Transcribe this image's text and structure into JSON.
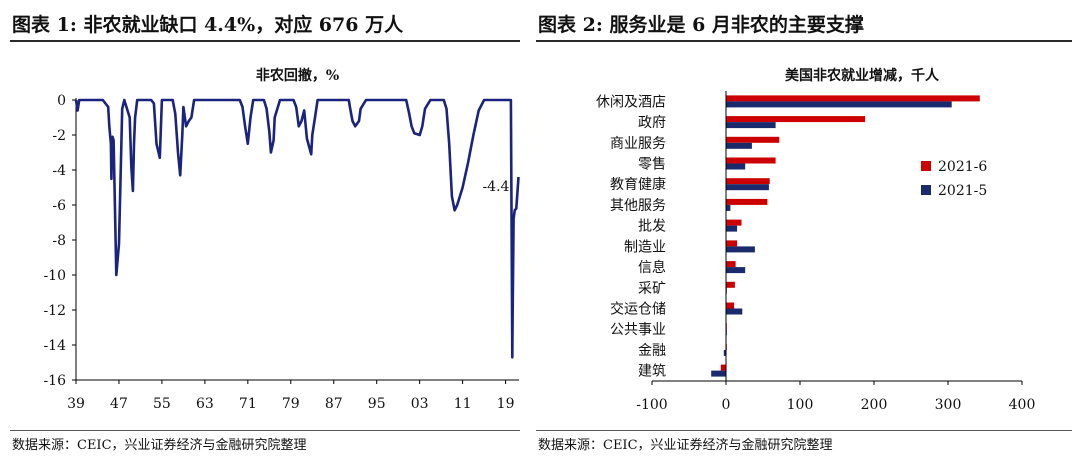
{
  "left_panel": {
    "heading": "图表 1:  非农就业缺口 4.4%，对应 676 万人",
    "source": "数据来源：CEIC，兴业证券经济与金融研究院整理"
  },
  "right_panel": {
    "heading": "图表 2:  服务业是 6 月非农的主要支撑",
    "source": "数据来源：CEIC，兴业证券经济与金融研究院整理"
  },
  "chart_data": [
    {
      "type": "line",
      "title": "非农回撤，%",
      "xlabel": "",
      "ylabel": "",
      "xlim": [
        1939,
        2021.5
      ],
      "ylim": [
        -16,
        0
      ],
      "x_ticks": [
        "39",
        "47",
        "55",
        "63",
        "71",
        "79",
        "87",
        "95",
        "03",
        "11",
        "19"
      ],
      "y_ticks": [
        "0",
        "-2",
        "-4",
        "-6",
        "-8",
        "-10",
        "-12",
        "-14",
        "-16"
      ],
      "annotation": "-4.4",
      "series": [
        {
          "color": "#1a237e",
          "x": [
            1939,
            1939.3,
            1939.6,
            1940,
            1941,
            1942,
            1943,
            1944,
            1945,
            1945.2,
            1945.5,
            1945.6,
            1945.7,
            1945.8,
            1946,
            1946.5,
            1947,
            1947.6,
            1948,
            1949,
            1949.3,
            1949.6,
            1949.8,
            1950,
            1950.4,
            1951,
            1952,
            1953,
            1953.5,
            1954,
            1954.6,
            1955,
            1956,
            1957,
            1957.5,
            1958,
            1958.4,
            1958.8,
            1959,
            1959.5,
            1960,
            1960.5,
            1961,
            1961.3,
            1962,
            1963,
            1969.5,
            1970,
            1970.5,
            1971,
            1971.5,
            1972,
            1973,
            1974,
            1974.5,
            1975,
            1975.3,
            1975.8,
            1976,
            1977,
            1979.5,
            1980,
            1980.5,
            1981,
            1981.5,
            1982,
            1982.8,
            1983,
            1983.5,
            1984,
            1985,
            1986,
            1989.8,
            1990,
            1990.5,
            1991,
            1991.7,
            1992,
            1993,
            1994,
            1999,
            2000.5,
            2001,
            2001.5,
            2002,
            2003,
            2003.5,
            2004,
            2005,
            2006,
            2007.5,
            2008,
            2008.5,
            2009,
            2009.5,
            2010,
            2010.5,
            2011,
            2012,
            2013,
            2014,
            2015,
            2016,
            2017,
            2018,
            2019,
            2020,
            2020.25,
            2020.3,
            2020.5,
            2020.7,
            2021,
            2021.2,
            2021.4
          ],
          "y": [
            0,
            -0.6,
            0,
            0,
            0,
            0,
            0,
            0,
            -0.4,
            -1.5,
            -2.5,
            -4.5,
            -2.2,
            -2.1,
            -2.3,
            -10,
            -8.2,
            -0.5,
            0,
            -1,
            -3.8,
            -5.2,
            -2.5,
            -1,
            0,
            0,
            0,
            0,
            -0.2,
            -2.5,
            -3.3,
            0,
            0,
            0,
            -0.8,
            -3,
            -4.3,
            -2,
            -0.4,
            -1.5,
            -1.2,
            -1,
            0,
            0,
            0,
            0,
            0,
            -0.4,
            -1.5,
            -2.5,
            -1,
            0,
            0,
            0,
            -0.5,
            -1.8,
            -3,
            -2.3,
            -1,
            0,
            0,
            -0.4,
            -1.5,
            -1.2,
            -0.6,
            -2.2,
            -3.1,
            -2,
            -1,
            0,
            0,
            0,
            0,
            -0.4,
            -1.2,
            -1.5,
            -1.2,
            -0.5,
            0,
            0,
            0,
            0,
            -0.7,
            -1.5,
            -1.9,
            -2,
            -1.5,
            -0.5,
            0,
            0,
            0,
            -0.5,
            -2.5,
            -5.5,
            -6.3,
            -6,
            -5.5,
            -5,
            -3.6,
            -2,
            -0.6,
            0,
            0,
            0,
            0,
            0,
            0,
            -14.7,
            -12.5,
            -6.8,
            -6.3,
            -6.2,
            -5.3,
            -4.4
          ]
        }
      ]
    },
    {
      "type": "bar",
      "orientation": "horizontal",
      "title": "美国非农就业增减，千人",
      "xlabel": "",
      "ylabel": "",
      "categories": [
        "休闲及酒店",
        "政府",
        "商业服务",
        "零售",
        "教育健康",
        "其他服务",
        "批发",
        "制造业",
        "信息",
        "采矿",
        "交运仓储",
        "公共事业",
        "金融",
        "建筑"
      ],
      "xlim": [
        -100,
        400
      ],
      "x_ticks": [
        "-100",
        "0",
        "100",
        "200",
        "300",
        "400"
      ],
      "legend_position": "right",
      "series": [
        {
          "name": "2021-6",
          "color": "#cc0000",
          "values": [
            343,
            188,
            72,
            67,
            59,
            56,
            21,
            15,
            13,
            12,
            11,
            1,
            1,
            -7
          ]
        },
        {
          "name": "2021-5",
          "color": "#1a2a6c",
          "values": [
            305,
            67,
            35,
            26,
            58,
            6,
            15,
            39,
            26,
            0,
            22,
            0,
            -3,
            -20
          ]
        }
      ]
    }
  ]
}
